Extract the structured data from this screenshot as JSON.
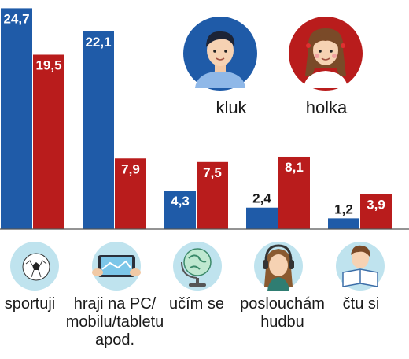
{
  "chart_data": {
    "type": "bar",
    "categories": [
      [
        "sportuji"
      ],
      [
        "hraji na PC/",
        "mobilu/tabletu",
        "apod."
      ],
      [
        "učím se"
      ],
      [
        "poslouchám",
        "hudbu"
      ],
      [
        "čtu si"
      ]
    ],
    "series": [
      {
        "name": "kluk",
        "values": [
          24.7,
          22.1,
          4.3,
          2.4,
          1.2
        ],
        "labels": [
          "24,7",
          "22,1",
          "4,3",
          "2,4",
          "1,2"
        ],
        "color": "#1f5ba8"
      },
      {
        "name": "holka",
        "values": [
          19.5,
          7.9,
          7.5,
          8.1,
          3.9
        ],
        "labels": [
          "19,5",
          "7,9",
          "7,5",
          "8,1",
          "3,9"
        ],
        "color": "#b91c1c"
      }
    ],
    "category_icons": [
      "soccer-ball-icon",
      "tablet-gaming-icon",
      "globe-icon",
      "headphones-girl-icon",
      "reading-boy-icon"
    ],
    "legend_icons": [
      "boy-avatar-icon",
      "girl-avatar-icon"
    ],
    "ylim": [
      0,
      25
    ],
    "legend_position": "top-right",
    "grid": false,
    "title": "",
    "xlabel": "",
    "ylabel": ""
  },
  "colors": {
    "boy": "#1f5ba8",
    "girl": "#b91c1c",
    "icon_bg": "#bfe3ee",
    "axis": "#555555"
  }
}
